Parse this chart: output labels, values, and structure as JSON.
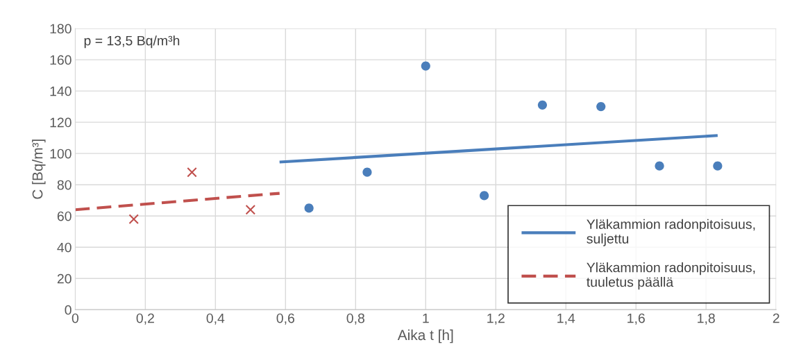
{
  "chart_data": {
    "type": "scatter",
    "xlabel": "Aika t [h]",
    "ylabel": "C [Bq/m³]",
    "annotations": [
      "p = 13,5 Bq/m³h"
    ],
    "series": [
      {
        "color": "#4a7ebb",
        "marker": "circle",
        "x": [
          0.667,
          0.833,
          1.0,
          1.167,
          1.333,
          1.5,
          1.667,
          1.833
        ],
        "values": [
          65,
          88,
          156,
          73,
          131,
          130,
          92,
          92
        ]
      },
      {
        "color": "#c0504d",
        "marker": "cross",
        "x": [
          0.167,
          0.333,
          0.5
        ],
        "values": [
          58,
          88,
          64
        ]
      },
      {
        "type": "line",
        "name": "Yläkammion radonpitoisuus,\nsuljettu",
        "color": "#4a7ebb",
        "line_style": "solid",
        "x": [
          0.583,
          1.833
        ],
        "values": [
          94.5,
          111.5
        ]
      },
      {
        "type": "line",
        "name": "Yläkammion radonpitoisuus,\ntuuletus päällä",
        "color": "#c0504d",
        "line_style": "dashed",
        "x": [
          0,
          0.583
        ],
        "values": [
          64,
          74.5
        ]
      }
    ],
    "xlim": [
      0,
      2
    ],
    "ylim": [
      0,
      180
    ],
    "xticks": [
      0,
      {
        "value": 0.2,
        "label": "0,2"
      },
      {
        "value": 0.4,
        "label": "0,4"
      },
      {
        "value": 0.6,
        "label": "0,6"
      },
      {
        "value": 0.8,
        "label": "0,8"
      },
      1,
      {
        "value": 1.2,
        "label": "1,2"
      },
      {
        "value": 1.4,
        "label": "1,4"
      },
      {
        "value": 1.6,
        "label": "1,6"
      },
      {
        "value": 1.8,
        "label": "1,8"
      },
      2
    ],
    "yticks": [
      0,
      20,
      40,
      60,
      80,
      100,
      120,
      140,
      160,
      180
    ],
    "grid": true,
    "legend": "bottom right"
  }
}
